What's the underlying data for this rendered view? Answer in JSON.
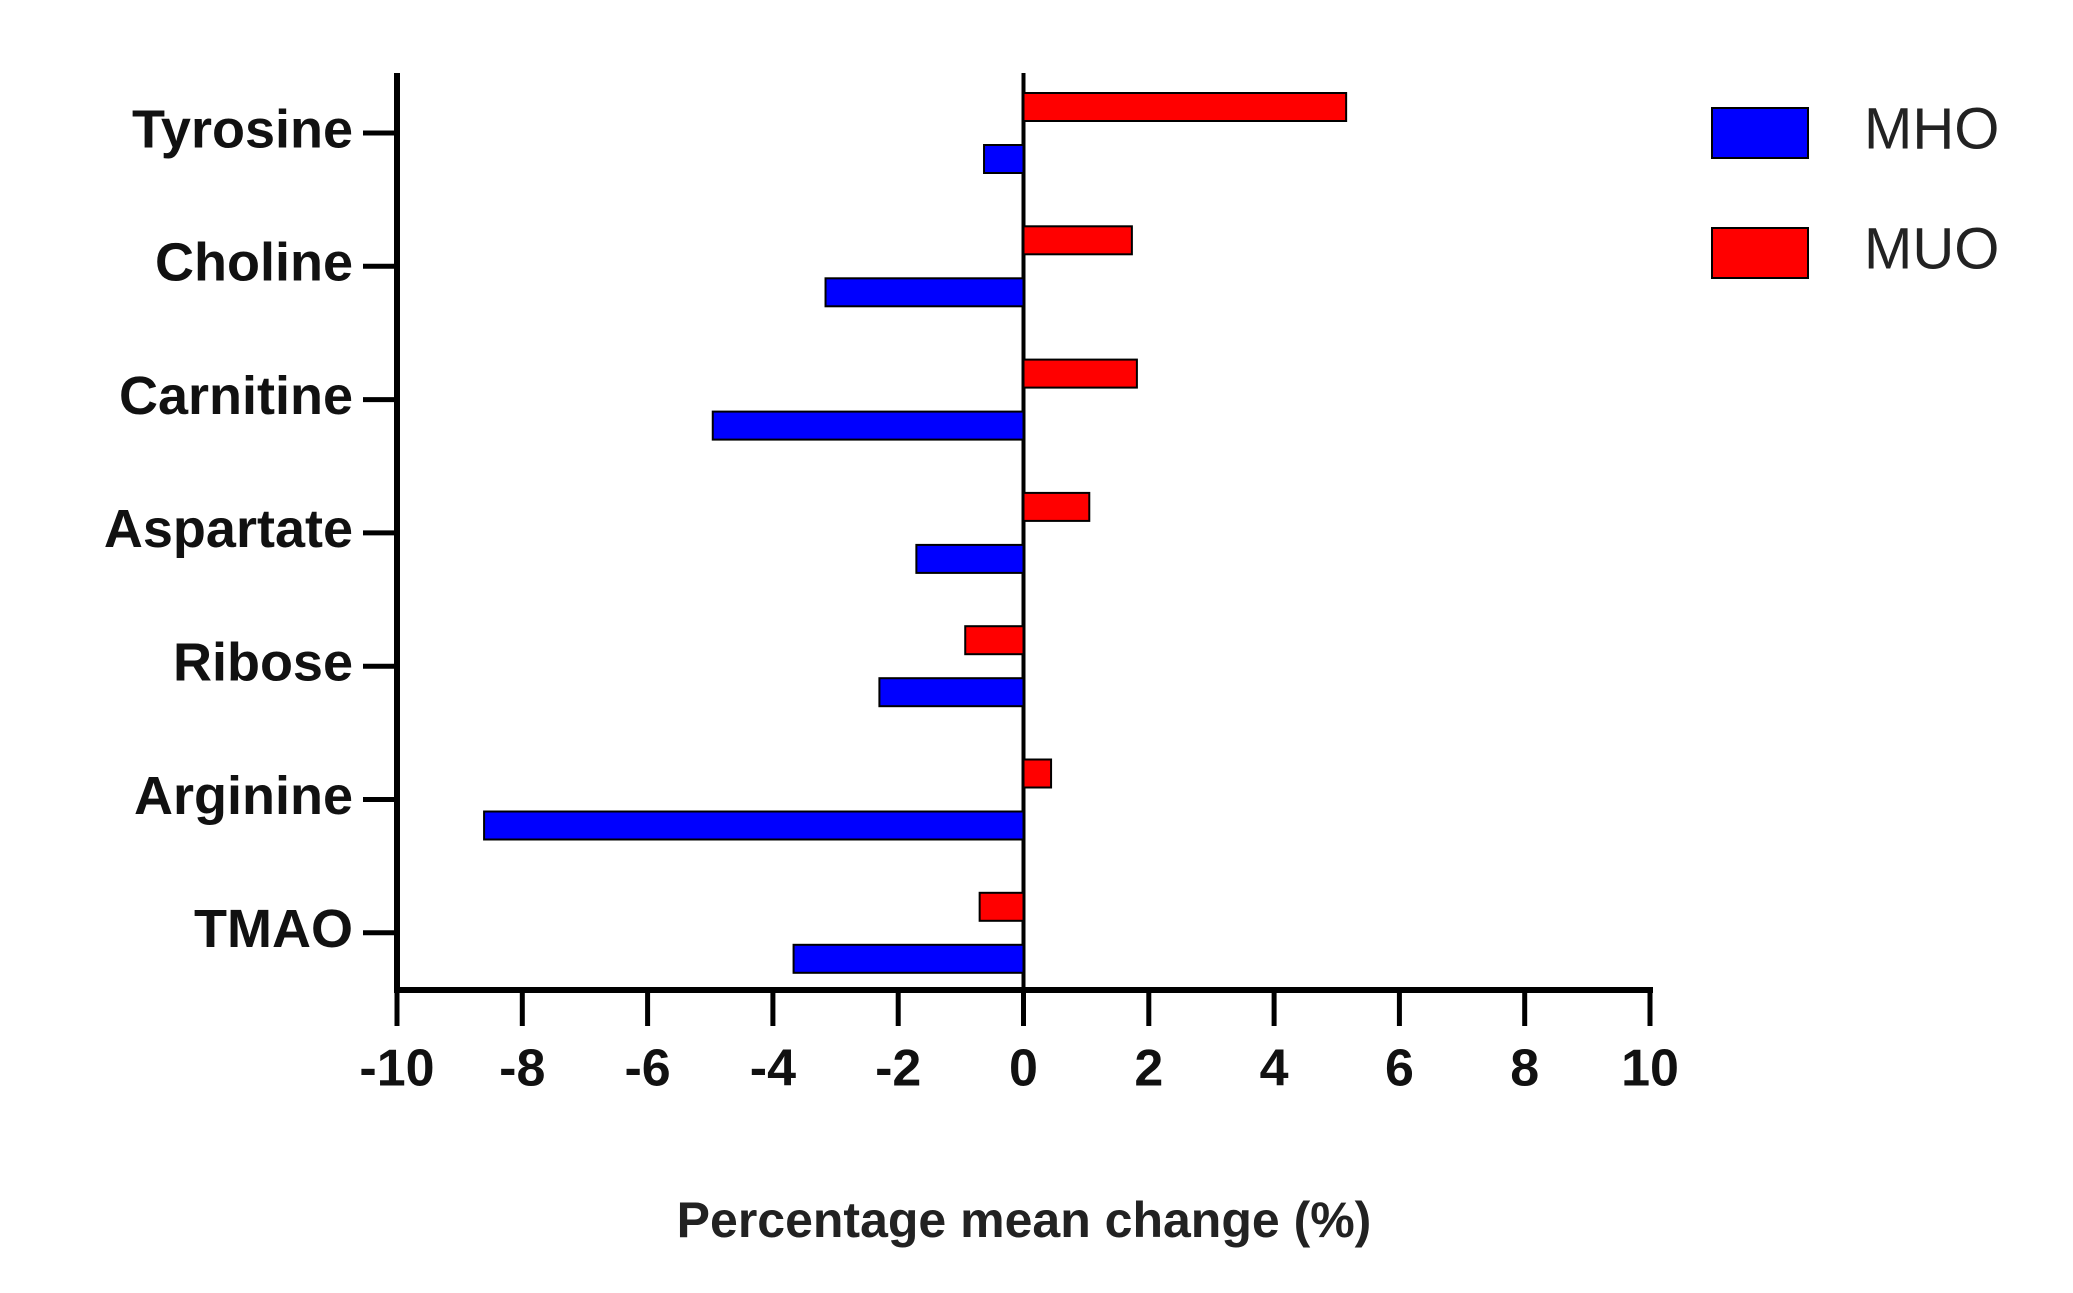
{
  "chart_data": {
    "type": "hbar",
    "x_label": "Percentage mean change (%)",
    "categories": [
      "Tyrosine",
      "Choline",
      "Carnitine",
      "Aspartate",
      "Ribose",
      "Arginine",
      "TMAO"
    ],
    "series": [
      {
        "name": "MHO",
        "color": "#0000ff",
        "values": [
          -0.63,
          -3.16,
          -4.96,
          -1.71,
          -2.3,
          -8.61,
          -3.67
        ]
      },
      {
        "name": "MUO",
        "color": "#ff0000",
        "values": [
          5.15,
          1.73,
          1.81,
          1.05,
          -0.93,
          0.44,
          -0.7
        ]
      }
    ],
    "xlim": [
      -10,
      10
    ],
    "xticks": [
      -10,
      -8,
      -6,
      -4,
      -2,
      0,
      2,
      4,
      6,
      8,
      10
    ],
    "legend": "top-right"
  }
}
